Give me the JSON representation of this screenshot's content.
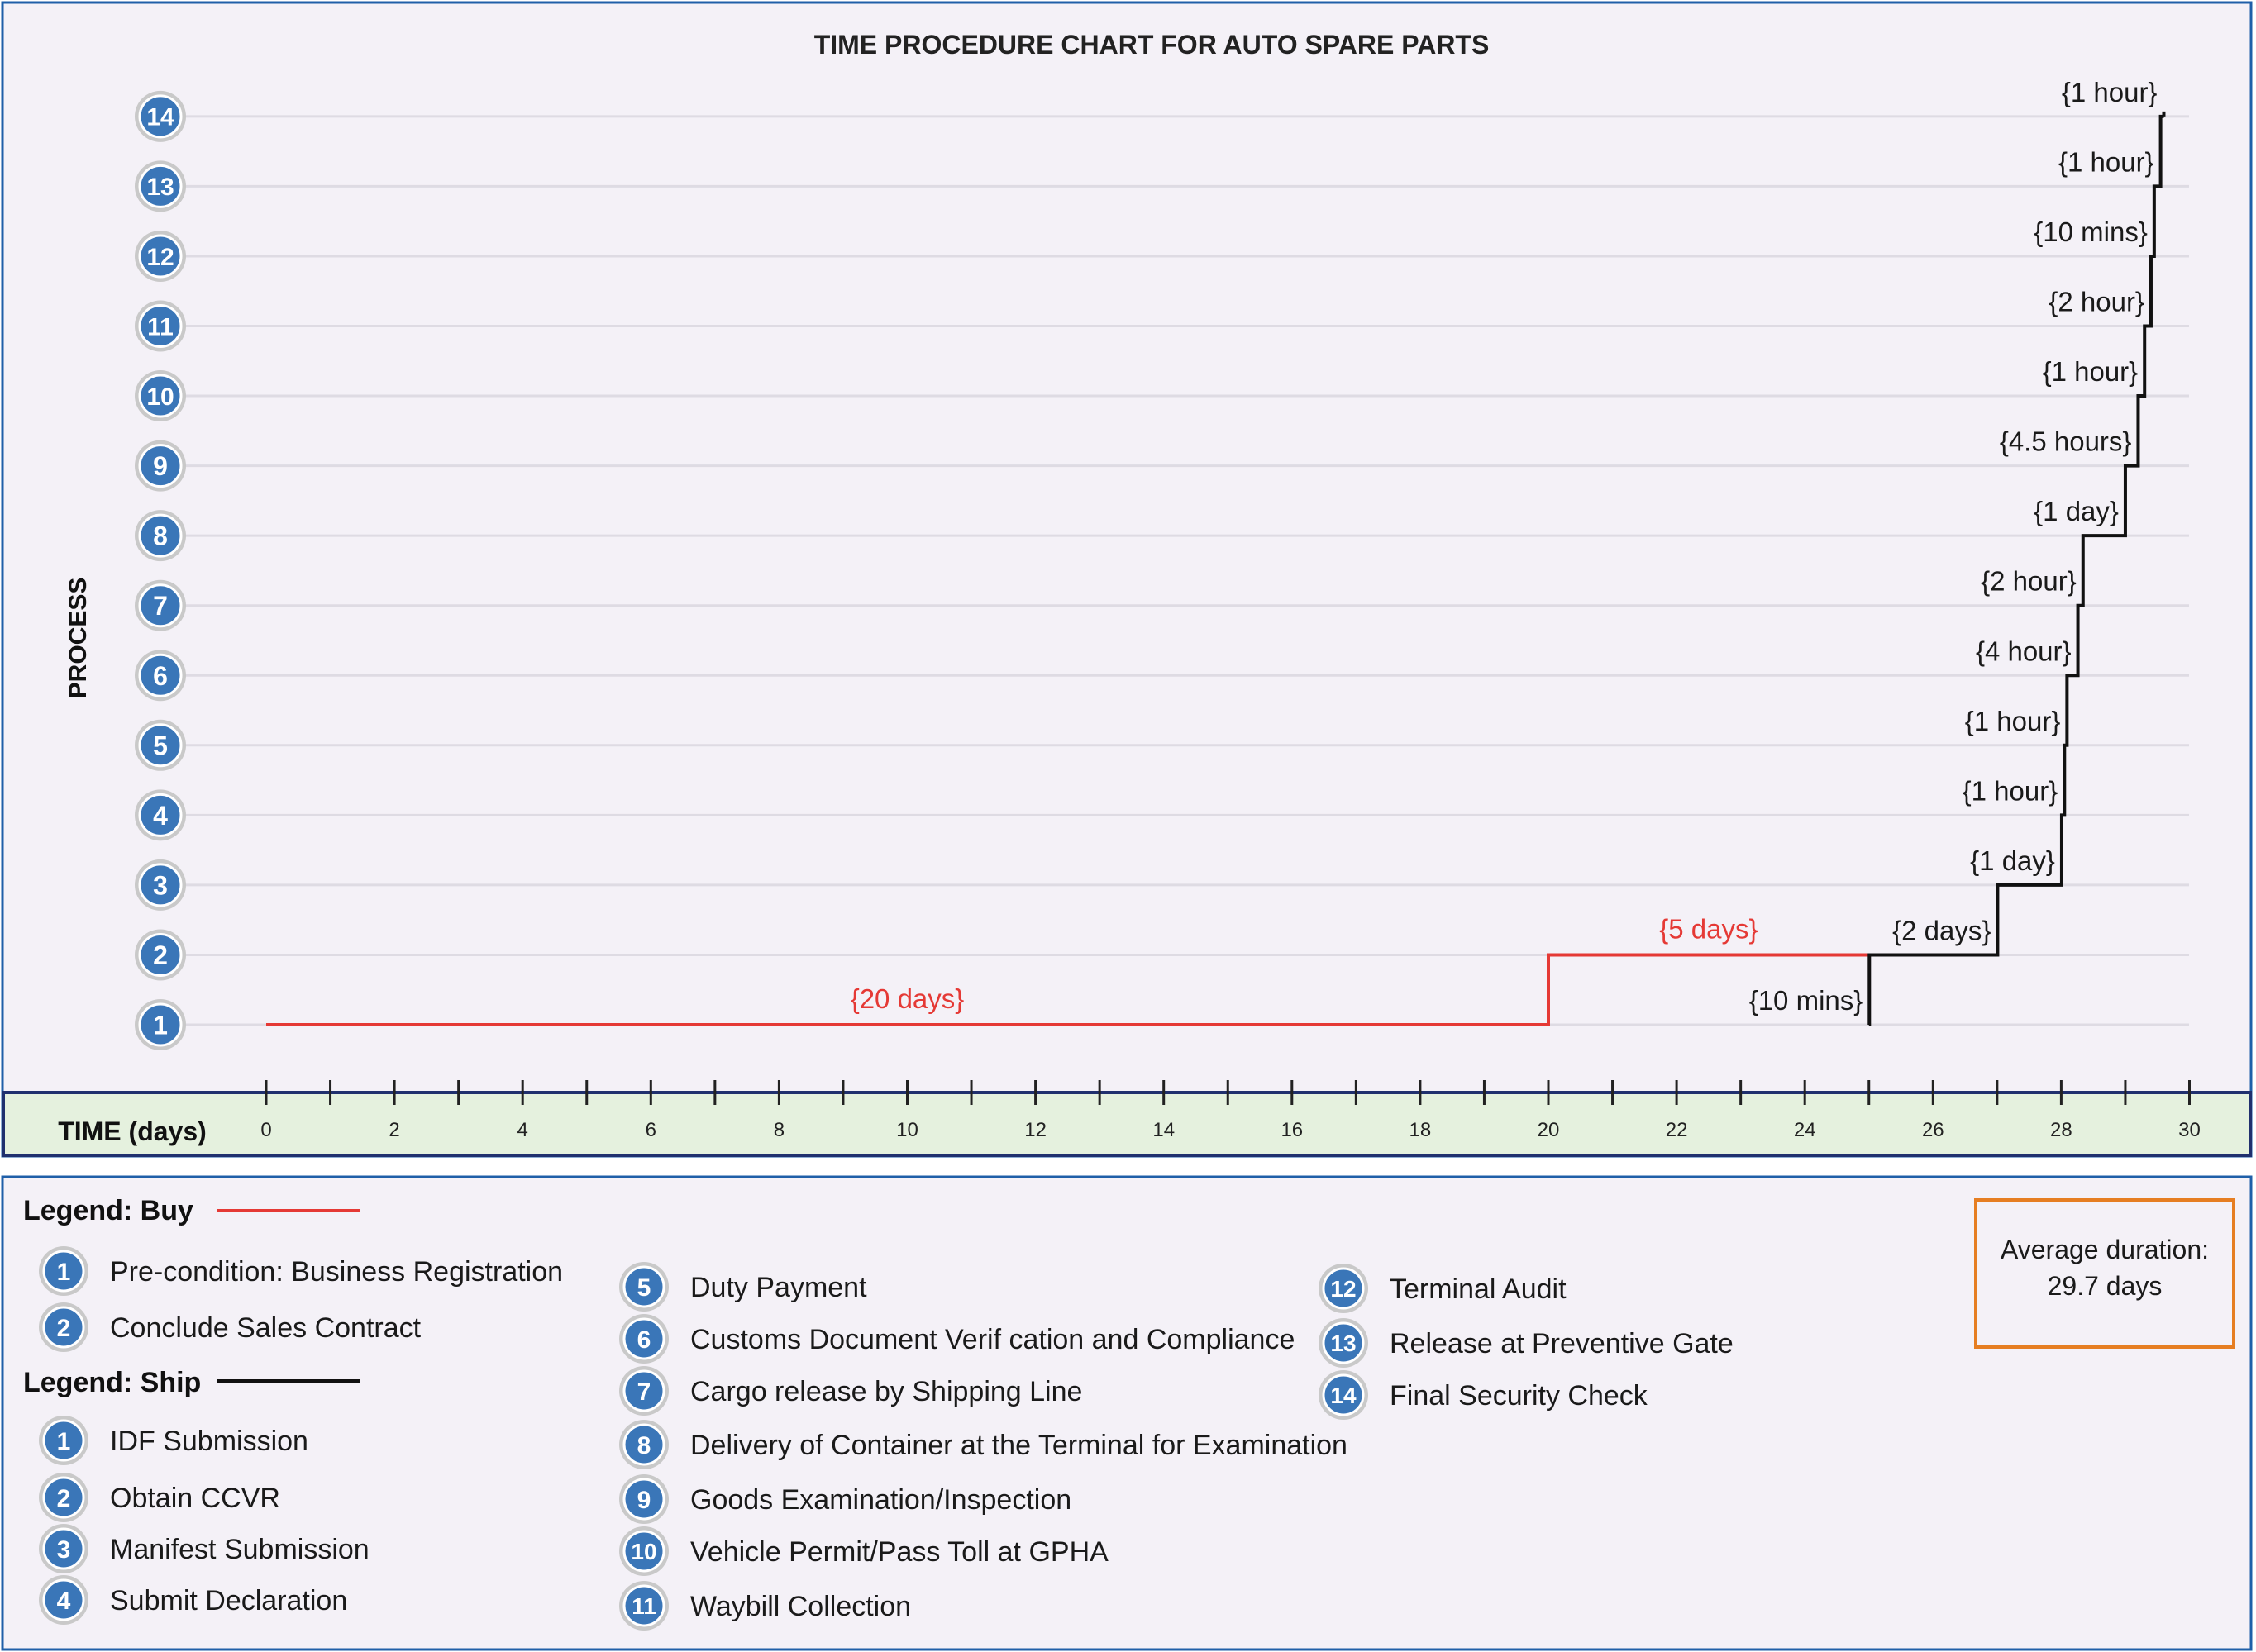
{
  "chart_data": {
    "type": "line",
    "title": "TIME PROCEDURE CHART FOR AUTO SPARE PARTS",
    "xlabel": "TIME (days)",
    "ylabel": "PROCESS",
    "xlim": [
      0,
      30
    ],
    "ylim": [
      1,
      14
    ],
    "x_ticks": [
      "0",
      "2",
      "4",
      "6",
      "8",
      "10",
      "12",
      "14",
      "16",
      "18",
      "20",
      "22",
      "24",
      "26",
      "28",
      "30"
    ],
    "y_ticks": [
      "1",
      "2",
      "3",
      "4",
      "5",
      "6",
      "7",
      "8",
      "9",
      "10",
      "11",
      "12",
      "13",
      "14"
    ],
    "grid": "horizontal",
    "series": [
      {
        "name": "Buy",
        "color": "#e53935",
        "steps": [
          {
            "process": 1,
            "start": 0,
            "end": 20,
            "label": "{20 days}"
          },
          {
            "process": 2,
            "start": 20,
            "end": 25,
            "label": "{5 days}"
          }
        ]
      },
      {
        "name": "Ship",
        "color": "#111111",
        "steps": [
          {
            "process": 1,
            "start": 25,
            "end": 25.007,
            "label": "{10 mins}"
          },
          {
            "process": 2,
            "start": 25.007,
            "end": 27.007,
            "label": "{2 days}"
          },
          {
            "process": 3,
            "start": 27.007,
            "end": 28.007,
            "label": "{1 day}"
          },
          {
            "process": 4,
            "start": 28.007,
            "end": 28.05,
            "label": "{1 hour}"
          },
          {
            "process": 5,
            "start": 28.05,
            "end": 28.09,
            "label": "{1 hour}"
          },
          {
            "process": 6,
            "start": 28.09,
            "end": 28.26,
            "label": "{4 hour}"
          },
          {
            "process": 7,
            "start": 28.26,
            "end": 28.34,
            "label": "{2 hour}"
          },
          {
            "process": 8,
            "start": 28.34,
            "end": 29.0,
            "label": "{1 day}"
          },
          {
            "process": 9,
            "start": 29.0,
            "end": 29.2,
            "label": "{4.5 hours}"
          },
          {
            "process": 10,
            "start": 29.2,
            "end": 29.3,
            "label": "{1 hour}"
          },
          {
            "process": 11,
            "start": 29.3,
            "end": 29.4,
            "label": "{2 hour}"
          },
          {
            "process": 12,
            "start": 29.4,
            "end": 29.45,
            "label": "{10 mins}"
          },
          {
            "process": 13,
            "start": 29.45,
            "end": 29.55,
            "label": "{1 hour}"
          },
          {
            "process": 14,
            "start": 29.55,
            "end": 29.6,
            "label": "{1 hour}"
          }
        ]
      }
    ]
  },
  "legend": {
    "buy_title": "Legend: Buy",
    "ship_title": "Legend: Ship",
    "buy_items": [
      {
        "num": "1",
        "label": "Pre-condition:  Business  Registration"
      },
      {
        "num": "2",
        "label": "Conclude Sales Contract"
      }
    ],
    "ship_items": [
      {
        "num": "1",
        "label": "IDF Submission"
      },
      {
        "num": "2",
        "label": "Obtain CCVR"
      },
      {
        "num": "3",
        "label": "Manifest Submission"
      },
      {
        "num": "4",
        "label": "Submit Declaration"
      },
      {
        "num": "5",
        "label": "Duty Payment"
      },
      {
        "num": "6",
        "label": "Customs Document Verif cation and Compliance"
      },
      {
        "num": "7",
        "label": "Cargo release by Shipping Line"
      },
      {
        "num": "8",
        "label": "Delivery of Container at the Terminal for Examination"
      },
      {
        "num": "9",
        "label": "Goods Examination/Inspection"
      },
      {
        "num": "10",
        "label": "Vehicle Permit/Pass Toll at GPHA"
      },
      {
        "num": "11",
        "label": "Waybill Collection"
      },
      {
        "num": "12",
        "label": "Terminal Audit"
      },
      {
        "num": "13",
        "label": "Release at Preventive Gate"
      },
      {
        "num": "14",
        "label": "Final Security Check"
      }
    ]
  },
  "average": {
    "line1": "Average duration:",
    "line2": "29.7 days",
    "border_color": "#e67e22"
  },
  "colors": {
    "frame": "#1f5fa8",
    "chart_bg": "#f4f1f7",
    "axis_band": "#e5f1de",
    "axis_band_border": "#20306e",
    "badge": "#3a76b8",
    "badge_ring": "#c9c9c9",
    "grid": "#dedbe3"
  }
}
